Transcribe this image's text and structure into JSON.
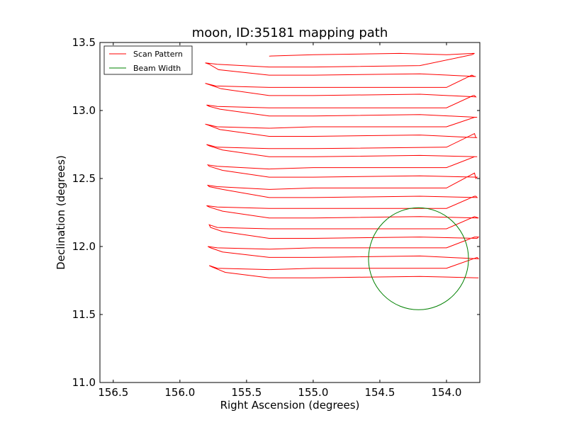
{
  "chart_data": {
    "type": "line",
    "title": "moon, ID:35181 mapping path",
    "xlabel": "Right Ascension (degrees)",
    "ylabel": "Declination (degrees)",
    "xlim": [
      156.6,
      153.75
    ],
    "ylim": [
      11.0,
      13.5
    ],
    "x_inverted": true,
    "xticks": [
      156.5,
      156.0,
      155.5,
      155.0,
      154.5,
      154.0
    ],
    "xtick_labels": [
      "156.5",
      "156.0",
      "155.5",
      "155.0",
      "154.5",
      "154.0"
    ],
    "yticks": [
      11.0,
      11.5,
      12.0,
      12.5,
      13.0,
      13.5
    ],
    "ytick_labels": [
      "11.0",
      "11.5",
      "12.0",
      "12.5",
      "13.0",
      "13.5"
    ],
    "grid": false,
    "legend_position": "top-left",
    "series": [
      {
        "name": "Scan Pattern",
        "color": "#ff0000",
        "x": [
          155.33,
          155.0,
          154.35,
          154.0,
          153.8,
          153.79,
          153.81,
          154.2,
          155.0,
          155.33,
          155.72,
          155.81,
          155.78,
          155.71,
          155.33,
          155.0,
          154.2,
          153.78,
          153.8,
          153.79,
          153.81,
          154.0,
          155.0,
          155.33,
          155.73,
          155.81,
          155.78,
          155.69,
          155.33,
          155.0,
          154.2,
          153.78,
          153.79,
          153.8,
          154.0,
          155.0,
          155.33,
          155.72,
          155.8,
          155.78,
          155.7,
          155.33,
          155.0,
          154.2,
          153.77,
          153.78,
          153.79,
          154.0,
          155.0,
          155.33,
          155.72,
          155.81,
          155.78,
          155.7,
          155.33,
          155.0,
          154.2,
          153.77,
          153.78,
          153.79,
          154.0,
          155.0,
          155.33,
          155.72,
          155.8,
          155.78,
          155.68,
          155.33,
          155.0,
          154.2,
          153.77,
          153.78,
          153.79,
          154.0,
          155.0,
          155.33,
          155.72,
          155.79,
          155.78,
          155.68,
          155.33,
          155.0,
          154.2,
          153.77,
          153.78,
          153.79,
          154.0,
          155.0,
          155.33,
          155.72,
          155.79,
          155.78,
          155.68,
          155.33,
          155.0,
          154.2,
          153.77,
          153.78,
          153.79,
          154.0,
          155.0,
          155.33,
          155.72,
          155.8,
          155.78,
          155.68,
          155.33,
          155.0,
          154.2,
          153.77,
          153.76,
          153.79,
          154.0,
          155.0,
          155.33,
          155.72,
          155.78,
          155.77,
          155.68,
          155.33,
          155.0,
          154.2,
          153.77,
          153.76,
          153.79,
          154.0,
          155.0,
          155.33,
          155.72,
          155.79,
          155.77,
          155.68,
          155.33,
          155.0,
          154.2,
          153.77,
          153.76,
          153.77,
          154.0,
          155.0,
          155.33,
          155.72,
          155.78,
          155.76,
          155.66,
          155.33,
          155.0,
          154.2,
          153.77,
          153.76
        ],
        "y": [
          13.4,
          13.41,
          13.42,
          13.41,
          13.42,
          13.42,
          13.41,
          13.33,
          13.32,
          13.32,
          13.34,
          13.35,
          13.34,
          13.3,
          13.26,
          13.26,
          13.27,
          13.25,
          13.25,
          13.25,
          13.26,
          13.17,
          13.17,
          13.17,
          13.18,
          13.2,
          13.19,
          13.16,
          13.11,
          13.11,
          13.12,
          13.1,
          13.11,
          13.11,
          13.02,
          13.02,
          13.02,
          13.03,
          13.04,
          13.03,
          13.01,
          12.96,
          12.96,
          12.97,
          12.95,
          12.95,
          12.95,
          12.88,
          12.88,
          12.87,
          12.88,
          12.9,
          12.89,
          12.86,
          12.81,
          12.81,
          12.82,
          12.8,
          12.8,
          12.83,
          12.73,
          12.72,
          12.72,
          12.73,
          12.75,
          12.74,
          12.71,
          12.66,
          12.66,
          12.67,
          12.66,
          12.66,
          12.66,
          12.58,
          12.58,
          12.57,
          12.59,
          12.6,
          12.59,
          12.56,
          12.51,
          12.51,
          12.52,
          12.51,
          12.5,
          12.54,
          12.43,
          12.43,
          12.42,
          12.44,
          12.45,
          12.44,
          12.42,
          12.36,
          12.36,
          12.37,
          12.36,
          12.37,
          12.37,
          12.28,
          12.28,
          12.28,
          12.29,
          12.3,
          12.29,
          12.26,
          12.21,
          12.21,
          12.22,
          12.21,
          12.21,
          12.22,
          12.13,
          12.13,
          12.13,
          12.14,
          12.16,
          12.14,
          12.11,
          12.06,
          12.06,
          12.07,
          12.06,
          12.07,
          12.07,
          11.99,
          11.99,
          11.98,
          11.99,
          12.0,
          11.99,
          11.96,
          11.92,
          11.92,
          11.93,
          11.91,
          11.91,
          11.92,
          11.84,
          11.84,
          11.83,
          11.84,
          11.86,
          11.85,
          11.81,
          11.77,
          11.77,
          11.78,
          11.77,
          11.77
        ]
      },
      {
        "name": "Beam Width",
        "color": "#008000",
        "shape": "circle",
        "center": [
          154.21,
          11.91
        ],
        "radius_deg": 0.375
      }
    ]
  },
  "legend": {
    "items": [
      {
        "label": "Scan Pattern",
        "color": "#ff0000"
      },
      {
        "label": "Beam Width",
        "color": "#008000"
      }
    ]
  }
}
